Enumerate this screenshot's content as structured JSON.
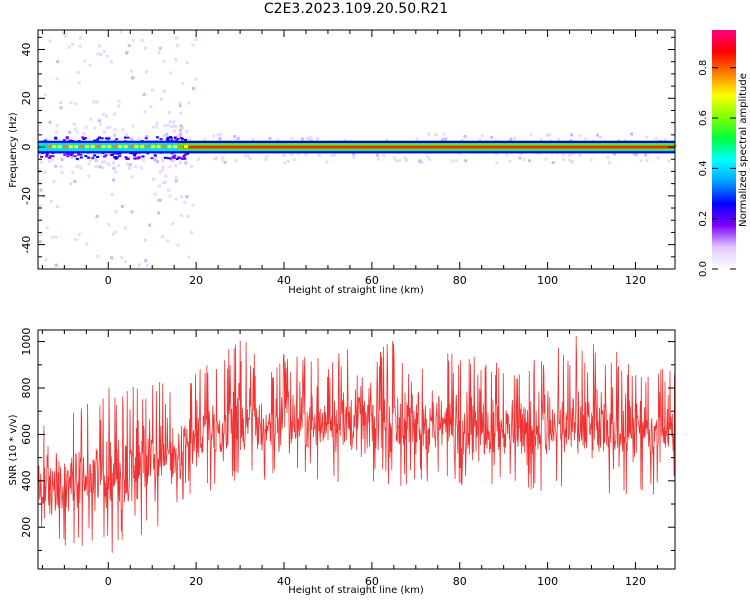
{
  "figure": {
    "title": "C2E3.2023.109.20.50.R21"
  },
  "chart_data": [
    {
      "type": "heatmap",
      "title": "C2E3.2023.109.20.50.R21",
      "xlabel": "Height of straight line (km)",
      "ylabel": "Frequency (Hz)",
      "xlim": [
        -16,
        129
      ],
      "ylim": [
        -50,
        48
      ],
      "xticks": [
        0,
        20,
        40,
        60,
        80,
        100,
        120
      ],
      "yticks": [
        -40,
        -20,
        0,
        20,
        40
      ],
      "ytick_labels": [
        "-40",
        "-20",
        "0",
        "20",
        "40"
      ],
      "band": {
        "description_of_signal": "narrow high-amplitude band centred near 0 Hz across all heights",
        "center_hz": 0,
        "half_width_hz": 2
      },
      "colorbar": {
        "label": "Normalized spectral amplitude",
        "range": [
          0,
          0.95
        ],
        "ticks": [
          0.0,
          0.2,
          0.4,
          0.6,
          0.8
        ],
        "tick_labels": [
          "0.0",
          "0.2",
          "0.4",
          "0.6",
          "0.8"
        ],
        "colormap": [
          "#ffffff",
          "#e0c8ff",
          "#8000ff",
          "#0000ff",
          "#00a0ff",
          "#00ffff",
          "#00ff40",
          "#80ff00",
          "#ffff00",
          "#ff8000",
          "#ff0000",
          "#ff0080"
        ]
      }
    },
    {
      "type": "line",
      "xlabel": "Height of straight line (km)",
      "ylabel": "SNR (10 * v/v)",
      "xlim": [
        -16,
        129
      ],
      "ylim": [
        20,
        1050
      ],
      "xticks": [
        0,
        20,
        40,
        60,
        80,
        100,
        120
      ],
      "yticks": [
        200,
        400,
        600,
        800,
        1000
      ],
      "color": "#f03232",
      "series": [
        {
          "x": [
            -16,
            -12,
            -8,
            -4,
            0,
            4,
            8,
            12,
            16,
            20,
            25,
            30,
            35,
            40,
            45,
            50,
            55,
            60,
            65,
            70,
            75,
            80,
            85,
            90,
            95,
            100,
            105,
            110,
            115,
            120,
            125,
            129
          ],
          "mean": [
            380,
            360,
            390,
            400,
            410,
            430,
            470,
            500,
            540,
            590,
            610,
            630,
            640,
            650,
            650,
            655,
            650,
            650,
            645,
            640,
            640,
            635,
            630,
            625,
            625,
            620,
            615,
            610,
            610,
            605,
            600,
            600
          ],
          "min": [
            140,
            110,
            110,
            120,
            60,
            120,
            150,
            200,
            260,
            330,
            350,
            370,
            380,
            380,
            380,
            380,
            380,
            380,
            380,
            370,
            370,
            360,
            360,
            360,
            350,
            350,
            350,
            350,
            340,
            330,
            330,
            330
          ],
          "max": [
            760,
            700,
            720,
            740,
            860,
            800,
            820,
            840,
            860,
            880,
            930,
            1040,
            900,
            960,
            940,
            920,
            1000,
            960,
            1030,
            980,
            960,
            960,
            940,
            920,
            900,
            960,
            1040,
            1000,
            960,
            940,
            900,
            880
          ]
        }
      ]
    }
  ]
}
